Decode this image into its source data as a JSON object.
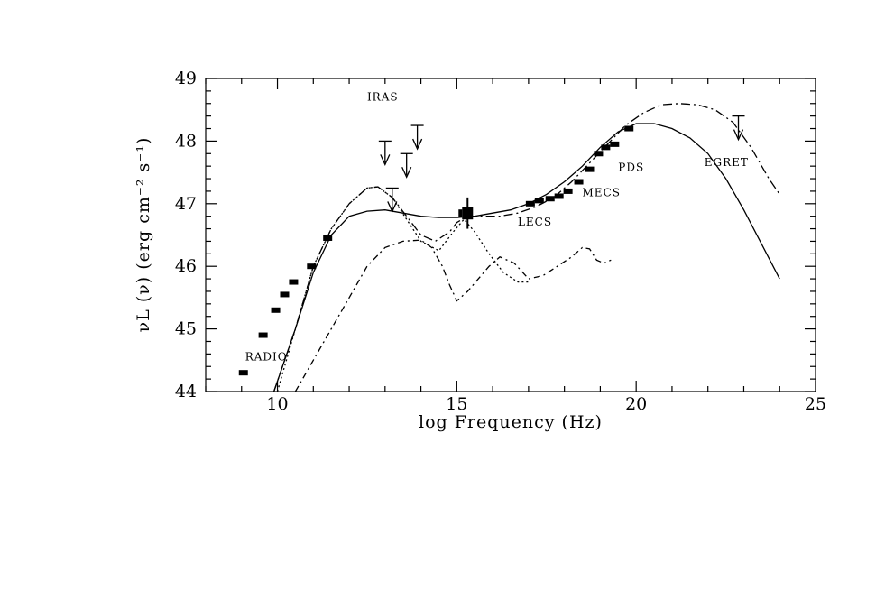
{
  "chart_data": {
    "type": "line",
    "title": "",
    "xlabel": "log Frequency (Hz)",
    "ylabel": "νL (ν) (erg cm⁻² s⁻¹)",
    "xlim": [
      8,
      25
    ],
    "ylim": [
      44,
      49
    ],
    "x_ticks": [
      10,
      15,
      20,
      25
    ],
    "y_ticks": [
      {
        "value": 44,
        "label": "44"
      },
      {
        "value": 45,
        "label": "45"
      },
      {
        "value": 46,
        "label": "46"
      },
      {
        "value": 47,
        "label": "47"
      },
      {
        "value": 48,
        "label": "48"
      },
      {
        "value": 49,
        "label": "49"
      }
    ],
    "grid": false,
    "annotations": [
      {
        "text": "RADIO",
        "x": 9.1,
        "y": 44.5
      },
      {
        "text": "IRAS",
        "x": 12.5,
        "y": 48.65
      },
      {
        "text": "LECS",
        "x": 16.7,
        "y": 46.65
      },
      {
        "text": "MECS",
        "x": 18.5,
        "y": 47.12
      },
      {
        "text": "PDS",
        "x": 19.5,
        "y": 47.52
      },
      {
        "text": "EGRET",
        "x": 21.9,
        "y": 47.6
      }
    ],
    "points": {
      "x": [
        9.05,
        9.6,
        9.95,
        10.2,
        10.45,
        10.95,
        11.4,
        17.05,
        17.3,
        17.6,
        17.85,
        18.1,
        18.4,
        18.7,
        18.95,
        19.15,
        19.4,
        19.8
      ],
      "y": [
        44.3,
        44.9,
        45.3,
        45.55,
        45.75,
        46.0,
        46.45,
        47.0,
        47.05,
        47.08,
        47.12,
        47.2,
        47.35,
        47.55,
        47.8,
        47.9,
        47.95,
        48.2
      ]
    },
    "optical_cluster": {
      "x": 15.3,
      "y": 46.85,
      "yerr_low": 46.6,
      "yerr_high": 47.1
    },
    "upper_limits": [
      {
        "x": 13.0,
        "y": 48.0
      },
      {
        "x": 13.2,
        "y": 47.25
      },
      {
        "x": 13.6,
        "y": 47.8
      },
      {
        "x": 13.9,
        "y": 48.25
      },
      {
        "x": 22.85,
        "y": 48.4
      }
    ],
    "series": [
      {
        "style": "solid",
        "x": [
          9.9,
          10.5,
          11.0,
          11.5,
          12.0,
          12.5,
          13.0,
          13.5,
          14.0,
          14.5,
          15.0,
          15.5,
          16.0,
          16.5,
          17.0,
          17.5,
          18.0,
          18.5,
          19.0,
          19.5,
          20.0,
          20.5,
          21.0,
          21.5,
          22.0,
          22.5,
          23.0,
          23.5,
          24.0
        ],
        "y": [
          44.0,
          45.0,
          45.9,
          46.5,
          46.8,
          46.88,
          46.9,
          46.85,
          46.8,
          46.78,
          46.78,
          46.8,
          46.85,
          46.9,
          47.0,
          47.15,
          47.35,
          47.6,
          47.9,
          48.15,
          48.28,
          48.28,
          48.2,
          48.05,
          47.8,
          47.4,
          46.9,
          46.35,
          45.8
        ]
      },
      {
        "style": "long-dash",
        "x": [
          9.9,
          10.5,
          11.0,
          11.5,
          12.0,
          12.5,
          12.8,
          13.2,
          13.6,
          14.0,
          14.4,
          14.8,
          15.0,
          15.3,
          15.7,
          16.2,
          16.7,
          17.2,
          17.7,
          18.2,
          18.7,
          19.2,
          19.7,
          20.2,
          20.7,
          21.2,
          21.7,
          22.2,
          22.7,
          23.2,
          23.7,
          24.0
        ],
        "y": [
          44.0,
          45.0,
          46.0,
          46.6,
          47.0,
          47.25,
          47.27,
          47.1,
          46.8,
          46.5,
          46.4,
          46.55,
          46.7,
          46.8,
          46.8,
          46.8,
          46.85,
          46.95,
          47.1,
          47.35,
          47.65,
          47.95,
          48.25,
          48.45,
          48.58,
          48.6,
          48.58,
          48.5,
          48.3,
          47.9,
          47.4,
          47.15
        ]
      },
      {
        "style": "dotted",
        "x": [
          10.0,
          10.5,
          11.0,
          11.5,
          12.0,
          12.5,
          12.8,
          13.2,
          13.6,
          14.0,
          14.5,
          14.9,
          15.2,
          15.5,
          15.9,
          16.3,
          16.7,
          17.0
        ],
        "y": [
          44.0,
          45.0,
          46.0,
          46.6,
          47.0,
          47.25,
          47.27,
          47.1,
          46.75,
          46.4,
          46.25,
          46.55,
          46.75,
          46.55,
          46.2,
          45.9,
          45.75,
          45.75
        ]
      },
      {
        "style": "dash-dot",
        "x": [
          10.5,
          11.0,
          11.5,
          12.0,
          12.5,
          13.0,
          13.5,
          14.0,
          14.3,
          14.6,
          14.8,
          15.0,
          15.3,
          15.6,
          15.9,
          16.2,
          16.6,
          17.0,
          17.4,
          17.8,
          18.2,
          18.5,
          18.7,
          18.9,
          19.1,
          19.3
        ],
        "y": [
          44.0,
          44.5,
          45.0,
          45.5,
          46.0,
          46.3,
          46.4,
          46.42,
          46.3,
          46.0,
          45.7,
          45.45,
          45.6,
          45.8,
          46.0,
          46.15,
          46.05,
          45.8,
          45.85,
          46.0,
          46.15,
          46.3,
          46.28,
          46.1,
          46.05,
          46.1
        ]
      }
    ]
  }
}
